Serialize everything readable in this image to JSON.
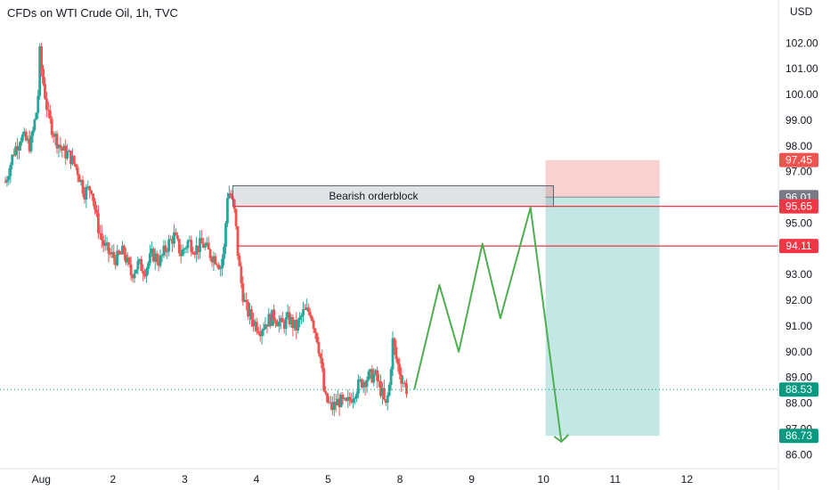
{
  "header": {
    "title": "CFDs on WTI Crude Oil, 1h, TVC",
    "currency": "USD"
  },
  "colors": {
    "up": "#26a69a",
    "down": "#ef5350",
    "projection": "#4caf50",
    "resistance": "#f23645",
    "current": "#089981",
    "neutral_badge": "#787b86",
    "target_zone": "#b2dfdb",
    "stop_zone": "#f8c9c9"
  },
  "chart_data": {
    "type": "candlestick",
    "title": "CFDs on WTI Crude Oil, 1h, TVC",
    "ylim": [
      85.5,
      103.0
    ],
    "xlim": [
      0,
      10.7
    ],
    "yticks": [
      "102.00",
      "101.00",
      "100.00",
      "99.00",
      "98.00",
      "97.00",
      "96.00",
      "95.00",
      "94.00",
      "93.00",
      "92.00",
      "91.00",
      "90.00",
      "89.00",
      "88.00",
      "87.00",
      "86.00"
    ],
    "xticks": [
      {
        "label": "Aug",
        "x": 0.5
      },
      {
        "label": "2",
        "x": 1.5
      },
      {
        "label": "3",
        "x": 2.5
      },
      {
        "label": "4",
        "x": 3.5
      },
      {
        "label": "5",
        "x": 4.5
      },
      {
        "label": "8",
        "x": 5.5
      },
      {
        "label": "9",
        "x": 6.5
      },
      {
        "label": "10",
        "x": 7.5
      },
      {
        "label": "11",
        "x": 8.5
      },
      {
        "label": "12",
        "x": 9.5
      }
    ],
    "anchors": [
      [
        0,
        96.6
      ],
      [
        0.12,
        97.8
      ],
      [
        0.22,
        98.4
      ],
      [
        0.35,
        98.0
      ],
      [
        0.45,
        99.6
      ],
      [
        0.48,
        101.6
      ],
      [
        0.52,
        100.6
      ],
      [
        0.6,
        99.1
      ],
      [
        0.7,
        98.3
      ],
      [
        0.8,
        97.8
      ],
      [
        0.9,
        97.6
      ],
      [
        1.0,
        97.1
      ],
      [
        1.1,
        96.2
      ],
      [
        1.2,
        96.4
      ],
      [
        1.28,
        95.0
      ],
      [
        1.36,
        94.2
      ],
      [
        1.45,
        93.8
      ],
      [
        1.55,
        93.6
      ],
      [
        1.65,
        93.9
      ],
      [
        1.75,
        93.0
      ],
      [
        1.85,
        93.4
      ],
      [
        1.95,
        93.2
      ],
      [
        2.05,
        93.8
      ],
      [
        2.15,
        93.5
      ],
      [
        2.25,
        94.1
      ],
      [
        2.35,
        94.5
      ],
      [
        2.45,
        93.8
      ],
      [
        2.55,
        94.3
      ],
      [
        2.65,
        94.0
      ],
      [
        2.75,
        94.2
      ],
      [
        2.85,
        93.8
      ],
      [
        2.95,
        93.6
      ],
      [
        3.0,
        93.3
      ],
      [
        3.05,
        94.0
      ],
      [
        3.1,
        96.3
      ],
      [
        3.15,
        96.0
      ],
      [
        3.2,
        95.3
      ],
      [
        3.25,
        93.5
      ],
      [
        3.3,
        92.4
      ],
      [
        3.35,
        91.7
      ],
      [
        3.45,
        91.2
      ],
      [
        3.55,
        90.9
      ],
      [
        3.65,
        91.2
      ],
      [
        3.75,
        91.4
      ],
      [
        3.85,
        91.0
      ],
      [
        3.95,
        91.3
      ],
      [
        4.05,
        90.9
      ],
      [
        4.15,
        91.5
      ],
      [
        4.25,
        91.6
      ],
      [
        4.35,
        90.5
      ],
      [
        4.4,
        89.6
      ],
      [
        4.45,
        88.2
      ],
      [
        4.55,
        87.8
      ],
      [
        4.65,
        88.1
      ],
      [
        4.75,
        87.9
      ],
      [
        4.85,
        88.4
      ],
      [
        4.95,
        88.8
      ],
      [
        5.05,
        89.0
      ],
      [
        5.15,
        89.1
      ],
      [
        5.25,
        88.4
      ],
      [
        5.3,
        87.8
      ],
      [
        5.35,
        88.6
      ],
      [
        5.4,
        90.4
      ],
      [
        5.45,
        89.7
      ],
      [
        5.52,
        89.0
      ],
      [
        5.6,
        88.5
      ]
    ],
    "projection": [
      [
        5.7,
        88.53
      ],
      [
        6.05,
        92.6
      ],
      [
        6.32,
        90.0
      ],
      [
        6.65,
        94.2
      ],
      [
        6.9,
        91.3
      ],
      [
        7.32,
        95.6
      ],
      [
        7.75,
        86.5
      ]
    ],
    "orderblock": {
      "label": "Bearish orderblock",
      "x0": 3.17,
      "x1": 7.64,
      "y_high": 96.45,
      "y_low": 95.65
    },
    "levels": [
      {
        "label": "95.65",
        "y": 95.65,
        "x_start": 3.17
      },
      {
        "label": "94.11",
        "y": 94.11,
        "x_start": 3.22
      }
    ],
    "position": {
      "x0": 7.53,
      "x1": 9.12,
      "entry": 96.01,
      "stop": 97.45,
      "target": 86.73
    },
    "current_price": 88.53,
    "badges": [
      {
        "label": "97.45",
        "y": 97.45,
        "kind": "stop"
      },
      {
        "label": "96.01",
        "y": 96.01,
        "kind": "neutral"
      },
      {
        "label": "95.65",
        "y": 95.65,
        "kind": "resistance"
      },
      {
        "label": "94.11",
        "y": 94.11,
        "kind": "resistance"
      },
      {
        "label": "88.53",
        "y": 88.53,
        "kind": "current"
      },
      {
        "label": "86.73",
        "y": 86.73,
        "kind": "target"
      }
    ]
  }
}
